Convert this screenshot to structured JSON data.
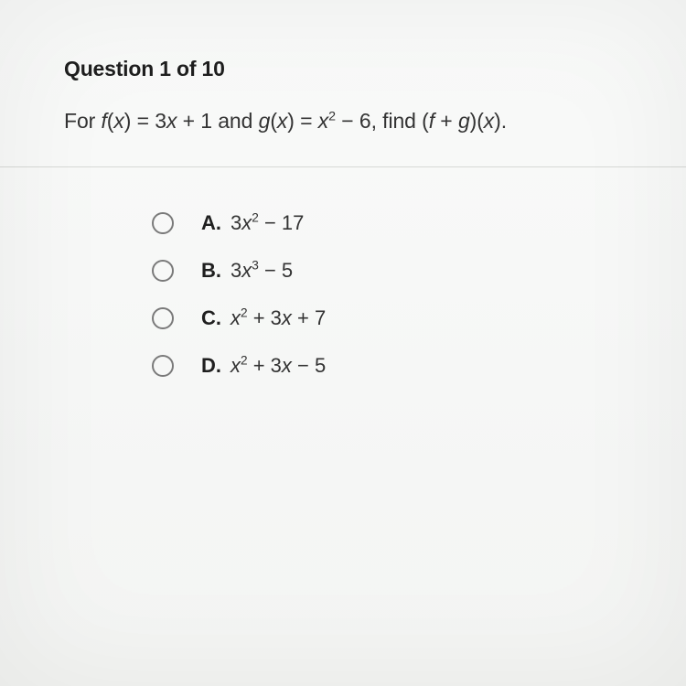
{
  "header": {
    "text": "Question 1 of 10"
  },
  "prompt": {
    "prefix": "For ",
    "fx_lhs_var": "f",
    "open1": "(",
    "x1": "x",
    "close1": ") = 3",
    "x2": "x",
    "plus1": " + 1 and ",
    "gx_lhs_var": "g",
    "open2": "(",
    "x3": "x",
    "close2": ") = ",
    "x4": "x",
    "sq": "2",
    "minus6": " − 6, find (",
    "f2": "f",
    "plus": " + ",
    "g2": "g",
    "close3": ")(",
    "x5": "x",
    "end": ")."
  },
  "options": [
    {
      "label": "A.",
      "parts": {
        "lead": "3",
        "var1": "x",
        "exp": "2",
        "tail": " − 17"
      }
    },
    {
      "label": "B.",
      "parts": {
        "lead": "3",
        "var1": "x",
        "exp": "3",
        "tail": " − 5"
      }
    },
    {
      "label": "C.",
      "parts": {
        "lead": "",
        "var1": "x",
        "exp": "2",
        "mid": " + 3",
        "var2": "x",
        "tail": " + 7"
      }
    },
    {
      "label": "D.",
      "parts": {
        "lead": "",
        "var1": "x",
        "exp": "2",
        "mid": " + 3",
        "var2": "x",
        "tail": " − 5"
      }
    }
  ]
}
